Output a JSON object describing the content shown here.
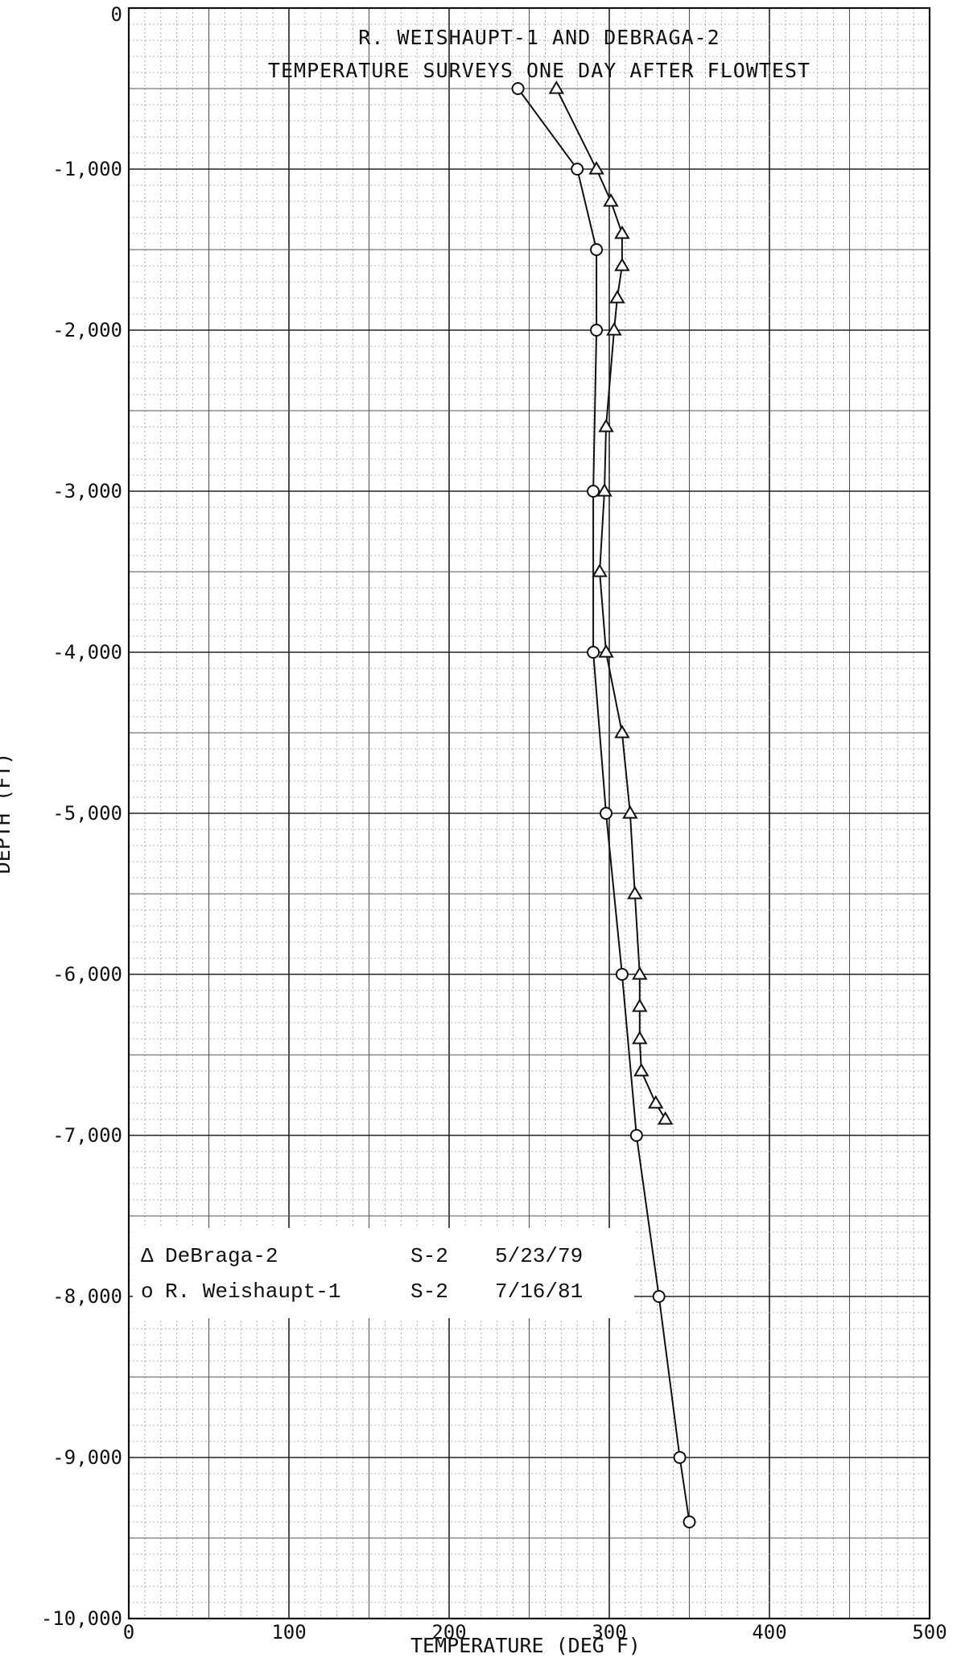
{
  "chart_data": {
    "type": "line",
    "title_line1": "R. WEISHAUPT-1  AND  DEBRAGA-2",
    "title_line2": "TEMPERATURE SURVEYS ONE DAY AFTER FLOWTEST",
    "xlabel": "TEMPERATURE (DEG F)",
    "ylabel": "DEPTH (FT)",
    "xlim": [
      0,
      500
    ],
    "ylim": [
      -10000,
      0
    ],
    "x_ticks": [
      {
        "value": 0,
        "label": "0"
      },
      {
        "value": 100,
        "label": "100"
      },
      {
        "value": 200,
        "label": "200"
      },
      {
        "value": 300,
        "label": "300"
      },
      {
        "value": 400,
        "label": "400"
      },
      {
        "value": 500,
        "label": "500"
      }
    ],
    "y_ticks": [
      {
        "value": 0,
        "label": "0"
      },
      {
        "value": -1000,
        "label": "-1,000"
      },
      {
        "value": -2000,
        "label": "-2,000"
      },
      {
        "value": -3000,
        "label": "-3,000"
      },
      {
        "value": -4000,
        "label": "-4,000"
      },
      {
        "value": -5000,
        "label": "-5,000"
      },
      {
        "value": -6000,
        "label": "-6,000"
      },
      {
        "value": -7000,
        "label": "-7,000"
      },
      {
        "value": -8000,
        "label": "-8,000"
      },
      {
        "value": -9000,
        "label": "-9,000"
      },
      {
        "value": -10000,
        "label": "-10,000"
      }
    ],
    "grid": true,
    "legend": {
      "placement": "lower-left",
      "entries": [
        {
          "symbol": "Δ",
          "name": "DeBraga-2",
          "survey": "S-2",
          "date": "5/23/79"
        },
        {
          "symbol": "o",
          "name": "R. Weishaupt-1",
          "survey": "S-2",
          "date": "7/16/81"
        }
      ]
    },
    "series": [
      {
        "name": "DeBraga-2",
        "marker": "triangle",
        "points": [
          {
            "x": 267,
            "y": -500
          },
          {
            "x": 292,
            "y": -1000
          },
          {
            "x": 301,
            "y": -1200
          },
          {
            "x": 308,
            "y": -1400
          },
          {
            "x": 308,
            "y": -1600
          },
          {
            "x": 305,
            "y": -1800
          },
          {
            "x": 303,
            "y": -2000
          },
          {
            "x": 298,
            "y": -2600
          },
          {
            "x": 297,
            "y": -3000
          },
          {
            "x": 294,
            "y": -3500
          },
          {
            "x": 298,
            "y": -4000
          },
          {
            "x": 308,
            "y": -4500
          },
          {
            "x": 313,
            "y": -5000
          },
          {
            "x": 316,
            "y": -5500
          },
          {
            "x": 319,
            "y": -6000
          },
          {
            "x": 319,
            "y": -6200
          },
          {
            "x": 319,
            "y": -6400
          },
          {
            "x": 320,
            "y": -6600
          },
          {
            "x": 329,
            "y": -6800
          },
          {
            "x": 335,
            "y": -6900
          }
        ]
      },
      {
        "name": "R. Weishaupt-1",
        "marker": "circle",
        "points": [
          {
            "x": 243,
            "y": -500
          },
          {
            "x": 280,
            "y": -1000
          },
          {
            "x": 292,
            "y": -1500
          },
          {
            "x": 292,
            "y": -2000
          },
          {
            "x": 290,
            "y": -3000
          },
          {
            "x": 290,
            "y": -4000
          },
          {
            "x": 298,
            "y": -5000
          },
          {
            "x": 308,
            "y": -6000
          },
          {
            "x": 317,
            "y": -7000
          },
          {
            "x": 331,
            "y": -8000
          },
          {
            "x": 344,
            "y": -9000
          },
          {
            "x": 350,
            "y": -9400
          }
        ]
      }
    ]
  }
}
